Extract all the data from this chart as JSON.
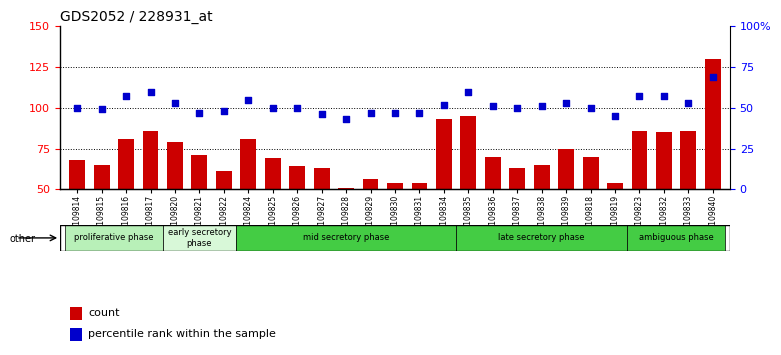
{
  "title": "GDS2052 / 228931_at",
  "samples": [
    "GSM109814",
    "GSM109815",
    "GSM109816",
    "GSM109817",
    "GSM109820",
    "GSM109821",
    "GSM109822",
    "GSM109824",
    "GSM109825",
    "GSM109826",
    "GSM109827",
    "GSM109828",
    "GSM109829",
    "GSM109830",
    "GSM109831",
    "GSM109834",
    "GSM109835",
    "GSM109836",
    "GSM109837",
    "GSM109838",
    "GSM109839",
    "GSM109818",
    "GSM109819",
    "GSM109823",
    "GSM109832",
    "GSM109833",
    "GSM109840"
  ],
  "bar_values": [
    68,
    65,
    81,
    86,
    79,
    71,
    61,
    81,
    69,
    64,
    63,
    51,
    56,
    54,
    54,
    93,
    95,
    70,
    63,
    65,
    75,
    70,
    54,
    86,
    85,
    86,
    130
  ],
  "dot_values": [
    50,
    49,
    57,
    60,
    53,
    47,
    48,
    55,
    50,
    50,
    46,
    43,
    47,
    47,
    47,
    52,
    60,
    51,
    50,
    51,
    53,
    50,
    45,
    57,
    57,
    53,
    69
  ],
  "phase_configs": [
    {
      "label": "proliferative phase",
      "n_samples": 4,
      "color": "#b8f0b8"
    },
    {
      "label": "early secretory\nphase",
      "n_samples": 3,
      "color": "#d8f8d8"
    },
    {
      "label": "mid secretory phase",
      "n_samples": 9,
      "color": "#44cc44"
    },
    {
      "label": "late secretory phase",
      "n_samples": 7,
      "color": "#44cc44"
    },
    {
      "label": "ambiguous phase",
      "n_samples": 4,
      "color": "#44cc44"
    }
  ],
  "ylim_left": [
    50,
    150
  ],
  "ylim_right": [
    0,
    100
  ],
  "yticks_left": [
    50,
    75,
    100,
    125,
    150
  ],
  "ytick_left_labels": [
    "50",
    "75",
    "100",
    "125",
    "150"
  ],
  "yticks_right": [
    0,
    25,
    50,
    75,
    100
  ],
  "ytick_right_labels": [
    "0",
    "25",
    "50",
    "75",
    "100%"
  ],
  "bar_color": "#cc0000",
  "dot_color": "#0000cc",
  "plot_bg": "#ffffff",
  "legend_count_label": "count",
  "legend_percentile_label": "percentile rank within the sample"
}
